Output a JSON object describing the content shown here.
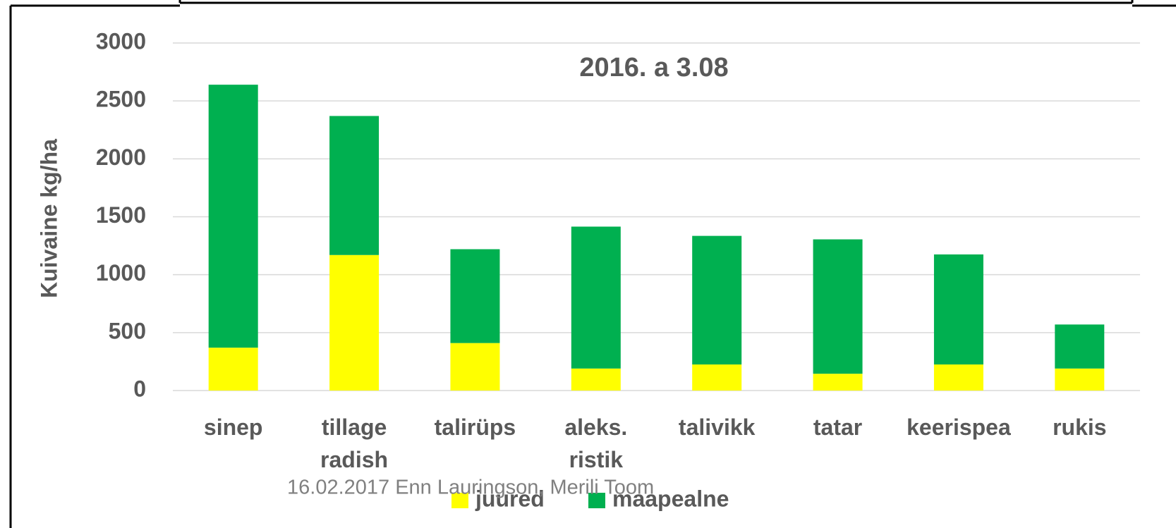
{
  "chart_data": {
    "type": "stacked_bar",
    "title": "2016. a 3.08",
    "y_label": "Kuivaine kg/ha",
    "categories": [
      "sinep",
      "tillage radish",
      "talirüps",
      "aleks. ristik",
      "talivikk",
      "tatar",
      "keerispea",
      "rukis"
    ],
    "series": [
      {
        "name": "juured",
        "color": "#ffff00",
        "values": [
          370,
          1170,
          410,
          190,
          225,
          145,
          225,
          190
        ]
      },
      {
        "name": "maapealne",
        "color": "#00b050",
        "values": [
          2270,
          1200,
          810,
          1225,
          1110,
          1160,
          950,
          380
        ]
      }
    ],
    "ylim": [
      0,
      3000
    ],
    "yticks": [
      0,
      500,
      1000,
      1500,
      2000,
      2500,
      3000
    ],
    "grid": true,
    "legend": "bottom",
    "footer": "16.02.2017 Enn Lauringson, Merili Toom"
  }
}
